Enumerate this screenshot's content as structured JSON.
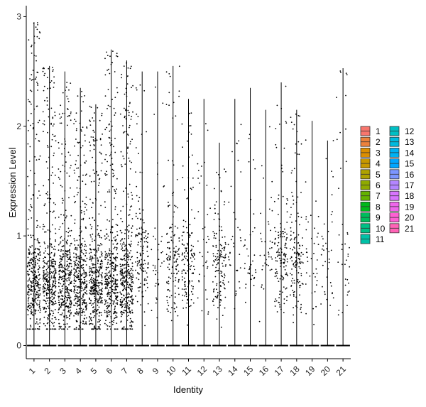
{
  "chart_data": {
    "type": "violin_jitter",
    "xlabel": "Identity",
    "ylabel": "Expression Level",
    "categories": [
      "1",
      "2",
      "3",
      "4",
      "5",
      "6",
      "7",
      "8",
      "9",
      "10",
      "11",
      "12",
      "13",
      "14",
      "15",
      "16",
      "17",
      "18",
      "19",
      "20",
      "21"
    ],
    "yticks": [
      0,
      1,
      2,
      3
    ],
    "ylim": [
      -0.12,
      3.1
    ],
    "max_values": [
      2.95,
      2.55,
      2.5,
      2.35,
      2.2,
      2.7,
      2.6,
      2.5,
      2.5,
      2.55,
      2.25,
      2.25,
      1.85,
      2.25,
      2.35,
      2.15,
      2.4,
      2.15,
      2.05,
      1.87,
      2.53
    ],
    "positive_cell_level": [
      "high",
      "high",
      "high",
      "high",
      "high",
      "high",
      "high",
      "medium",
      "low",
      "medium",
      "medium",
      "low",
      "medium",
      "low",
      "low",
      "low",
      "medium",
      "medium",
      "low",
      "low",
      "low"
    ],
    "grid": false,
    "legend": {
      "position": "right",
      "columns": 2,
      "entries": [
        {
          "label": "1",
          "color": "#F8766D"
        },
        {
          "label": "2",
          "color": "#EC823C"
        },
        {
          "label": "3",
          "color": "#DB8E00"
        },
        {
          "label": "4",
          "color": "#C79800"
        },
        {
          "label": "5",
          "color": "#AEA200"
        },
        {
          "label": "6",
          "color": "#8FAA00"
        },
        {
          "label": "7",
          "color": "#64B200"
        },
        {
          "label": "8",
          "color": "#00B81B"
        },
        {
          "label": "9",
          "color": "#00BD5C"
        },
        {
          "label": "10",
          "color": "#00C085"
        },
        {
          "label": "11",
          "color": "#00C1A7"
        },
        {
          "label": "12",
          "color": "#00BFC4"
        },
        {
          "label": "13",
          "color": "#00BADE"
        },
        {
          "label": "14",
          "color": "#00B2F3"
        },
        {
          "label": "15",
          "color": "#00A6FF"
        },
        {
          "label": "16",
          "color": "#7C96FF"
        },
        {
          "label": "17",
          "color": "#B385FF"
        },
        {
          "label": "18",
          "color": "#D874FD"
        },
        {
          "label": "19",
          "color": "#EF67EB"
        },
        {
          "label": "20",
          "color": "#FD61D3"
        },
        {
          "label": "21",
          "color": "#FF63B6"
        }
      ]
    }
  }
}
